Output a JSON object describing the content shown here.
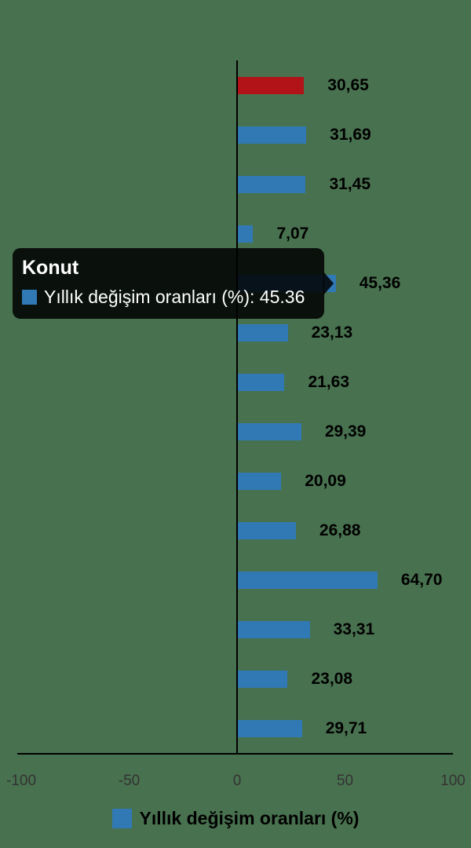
{
  "colors": {
    "background": "#48714f",
    "bar": "#3179b5",
    "bar_highlight": "#b11318",
    "axis": "#000000",
    "data_label": "#000000",
    "tick_label": "#333333",
    "tooltip_bg": "rgba(0,0,0,0.85)",
    "tooltip_text": "#ffffff"
  },
  "chart_data": {
    "type": "bar",
    "orientation": "horizontal",
    "title": "",
    "xlabel": "",
    "ylabel": "",
    "xlim": [
      -100,
      100
    ],
    "x_tick_values": [
      -100,
      -50,
      0,
      50,
      100
    ],
    "x_tick_labels": [
      "-100",
      "-50",
      "0",
      "50",
      "100"
    ],
    "grid": false,
    "legend_position": "bottom",
    "series": [
      {
        "name": "Yıllık değişim oranları (%)",
        "values": [
          30.65,
          31.69,
          31.45,
          7.07,
          45.36,
          23.13,
          21.63,
          29.39,
          20.09,
          26.88,
          64.7,
          33.31,
          23.08,
          29.71
        ],
        "data_labels": [
          "30,65",
          "31,69",
          "31,45",
          "7,07",
          "45,36",
          "23,13",
          "21,63",
          "29,39",
          "20,09",
          "26,88",
          "64,70",
          "33,31",
          "23,08",
          "29,71"
        ]
      }
    ],
    "highlighted_bar_index": 0,
    "hovered_bar_index": 4,
    "hovered_category": "Konut"
  },
  "tooltip": {
    "title": "Konut",
    "text": "Yıllık değişim oranları (%): 45.36"
  },
  "legend": {
    "label": "Yıllık değişim oranları (%)"
  }
}
